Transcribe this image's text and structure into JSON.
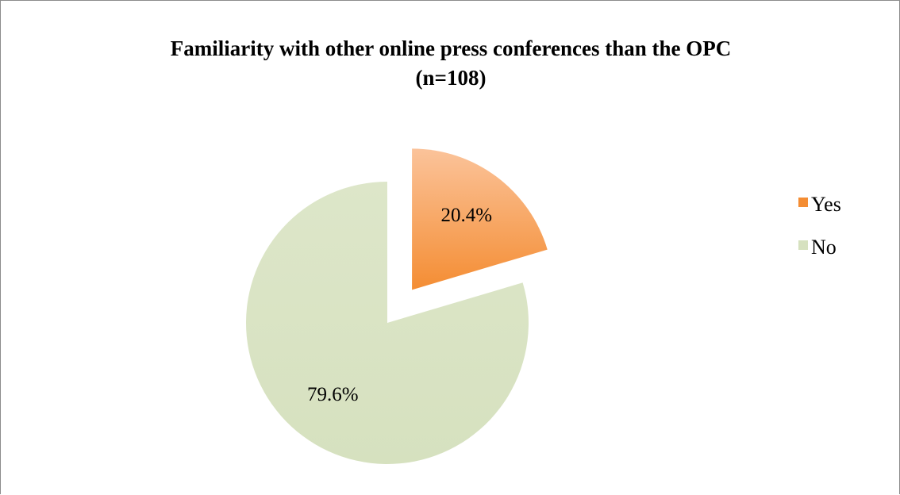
{
  "chart_data": {
    "type": "pie",
    "title": [
      "Familiarity with other online press conferences than the OPC",
      "(n=108)"
    ],
    "categories": [
      "Yes",
      "No"
    ],
    "values": [
      20.4,
      79.6
    ],
    "data_labels": [
      "20.4%",
      "79.6%"
    ],
    "exploded": [
      "Yes"
    ],
    "legend_position": "right",
    "colors": {
      "Yes": {
        "light": "#fbc39a",
        "dark": "#f48d33"
      },
      "No": {
        "light": "#dde6c9",
        "dark": "#d6e1bf"
      }
    }
  }
}
